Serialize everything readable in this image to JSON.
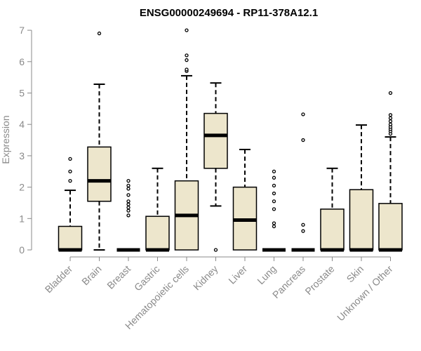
{
  "chart_data": {
    "type": "boxplot",
    "title": "ENSG00000249694 - RP11-378A12.1",
    "ylabel": "Expression",
    "xlabel": "",
    "ylim": [
      0,
      7
    ],
    "yticks": [
      0,
      1,
      2,
      3,
      4,
      5,
      6,
      7
    ],
    "grid": false,
    "legend": "none",
    "box_color": "#ede6cc",
    "categories": [
      "Bladder",
      "Brain",
      "Breast",
      "Gastric",
      "Hematopoietic cells",
      "Kidney",
      "Liver",
      "Lung",
      "Pancreas",
      "Prostate",
      "Skin",
      "Unknown / Other"
    ],
    "boxes": [
      {
        "category": "Bladder",
        "whisker_low": 0,
        "q1": 0,
        "median": 0,
        "q3": 0.75,
        "whisker_high": 1.9,
        "outliers": [
          2.2,
          2.5,
          2.9
        ]
      },
      {
        "category": "Brain",
        "whisker_low": 0,
        "q1": 1.55,
        "median": 2.2,
        "q3": 3.28,
        "whisker_high": 5.28,
        "outliers": [
          6.9
        ]
      },
      {
        "category": "Breast",
        "whisker_low": 0,
        "q1": 0,
        "median": 0,
        "q3": 0,
        "whisker_high": 0,
        "outliers": [
          1.1,
          1.25,
          1.35,
          1.45,
          1.55,
          1.75,
          1.95,
          2.05,
          2.2
        ]
      },
      {
        "category": "Gastric",
        "whisker_low": 0,
        "q1": 0,
        "median": 0,
        "q3": 1.07,
        "whisker_high": 2.6,
        "outliers": []
      },
      {
        "category": "Hematopoietic cells",
        "whisker_low": 0,
        "q1": 0,
        "median": 1.1,
        "q3": 2.2,
        "whisker_high": 5.55,
        "outliers": [
          5.7,
          5.75,
          6.05,
          6.2,
          7.0
        ]
      },
      {
        "category": "Kidney",
        "whisker_low": 1.4,
        "q1": 2.6,
        "median": 3.65,
        "q3": 4.35,
        "whisker_high": 5.32,
        "outliers": [
          0
        ]
      },
      {
        "category": "Liver",
        "whisker_low": 0,
        "q1": 0,
        "median": 0.95,
        "q3": 2.0,
        "whisker_high": 3.2,
        "outliers": []
      },
      {
        "category": "Lung",
        "whisker_low": 0,
        "q1": 0,
        "median": 0,
        "q3": 0,
        "whisker_high": 0,
        "outliers": [
          0.75,
          0.85,
          1.3,
          1.55,
          1.8,
          2.05,
          2.3,
          2.5
        ]
      },
      {
        "category": "Pancreas",
        "whisker_low": 0,
        "q1": 0,
        "median": 0,
        "q3": 0,
        "whisker_high": 0,
        "outliers": [
          0.6,
          0.8,
          3.5,
          4.32
        ]
      },
      {
        "category": "Prostate",
        "whisker_low": 0,
        "q1": 0,
        "median": 0,
        "q3": 1.3,
        "whisker_high": 2.6,
        "outliers": []
      },
      {
        "category": "Skin",
        "whisker_low": 0,
        "q1": 0,
        "median": 0,
        "q3": 1.92,
        "whisker_high": 3.98,
        "outliers": []
      },
      {
        "category": "Unknown / Other",
        "whisker_low": 0,
        "q1": 0,
        "median": 0,
        "q3": 1.48,
        "whisker_high": 3.6,
        "outliers": [
          3.7,
          3.78,
          3.85,
          3.92,
          4.0,
          4.1,
          4.2,
          4.3,
          5.0
        ]
      }
    ]
  }
}
